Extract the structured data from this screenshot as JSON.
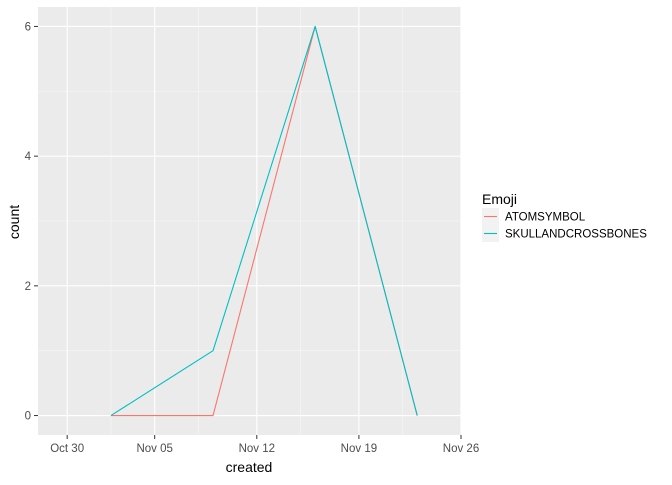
{
  "chart_data": {
    "type": "line",
    "xlabel": "created",
    "ylabel": "count",
    "x_type": "date",
    "xlim": [
      "2017-10-28",
      "2017-11-26"
    ],
    "ylim": [
      -0.3,
      6.3
    ],
    "x_ticks": [
      {
        "date": "2017-10-30",
        "label": "Oct 30"
      },
      {
        "date": "2017-11-05",
        "label": "Nov 05"
      },
      {
        "date": "2017-11-12",
        "label": "Nov 12"
      },
      {
        "date": "2017-11-19",
        "label": "Nov 19"
      },
      {
        "date": "2017-11-26",
        "label": "Nov 26"
      }
    ],
    "y_ticks": [
      0,
      2,
      4,
      6
    ],
    "grid": true,
    "panel_background": "#ebebeb",
    "legend": {
      "title": "Emoji",
      "position": "right"
    },
    "series": [
      {
        "name": "ATOMSYMBOL",
        "color": "#F8766D",
        "points": [
          {
            "x": "2017-11-02",
            "y": 0
          },
          {
            "x": "2017-11-09",
            "y": 0
          },
          {
            "x": "2017-11-16",
            "y": 6
          },
          {
            "x": "2017-11-23",
            "y": 0
          }
        ]
      },
      {
        "name": "SKULLANDCROSSBONES",
        "color": "#00BFC4",
        "points": [
          {
            "x": "2017-11-02",
            "y": 0
          },
          {
            "x": "2017-11-09",
            "y": 1
          },
          {
            "x": "2017-11-16",
            "y": 6
          },
          {
            "x": "2017-11-23",
            "y": 0
          }
        ]
      }
    ]
  }
}
